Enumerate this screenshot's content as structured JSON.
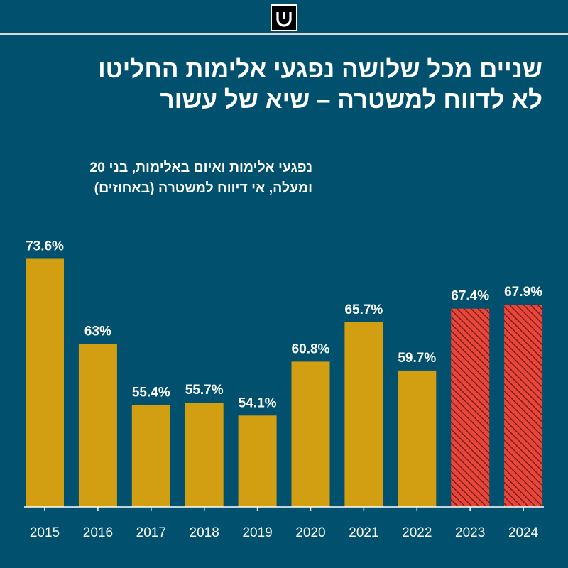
{
  "header": {
    "logo_icon": "u-logo-icon",
    "title_lines": [
      "שניים מכל שלושה נפגעי אלימות החליטו",
      "לא לדווח למשטרה – שיא של עשור"
    ]
  },
  "colors": {
    "background": "#00506e",
    "normal_bar": "#d29f13",
    "highlight_bar": "#e8453c",
    "highlight_hatch": "#7a1f14",
    "text": "#ffffff"
  },
  "chart_data": {
    "type": "bar",
    "title": "שניים מכל שלושה נפגעי אלימות החליטו לא לדווח למשטרה – שיא של עשור",
    "subtitle_lines": [
      "נפגעי אלימות ואיום באלימות, בני 20",
      "ומעלה, אי דיווח למשטרה (באחוזים)"
    ],
    "categories": [
      "2015",
      "2016",
      "2017",
      "2018",
      "2019",
      "2020",
      "2021",
      "2022",
      "2023",
      "2024"
    ],
    "values": [
      73.6,
      63,
      55.4,
      55.7,
      54.1,
      60.8,
      65.7,
      59.7,
      67.4,
      67.9
    ],
    "value_labels": [
      "73.6%",
      "63%",
      "55.4%",
      "55.7%",
      "54.1%",
      "60.8%",
      "65.7%",
      "59.7%",
      "67.4%",
      "67.9%"
    ],
    "highlighted": [
      false,
      false,
      false,
      false,
      false,
      false,
      false,
      false,
      true,
      true
    ],
    "xlabel": "",
    "ylabel": "",
    "ylim": [
      0,
      100
    ],
    "grid": false,
    "legend": "none"
  }
}
